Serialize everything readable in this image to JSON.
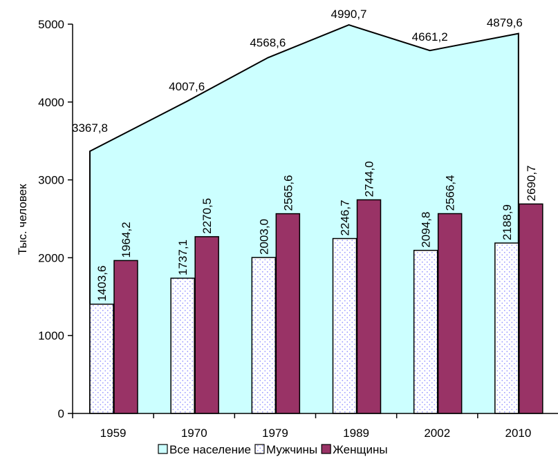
{
  "chart_data": {
    "type": "bar",
    "categories": [
      "1959",
      "1970",
      "1979",
      "1989",
      "2002",
      "2010"
    ],
    "ylabel": "Тыс. человек",
    "ylim": [
      0,
      5000
    ],
    "yticks": [
      "0",
      "1000",
      "2000",
      "3000",
      "4000",
      "5000"
    ],
    "series": [
      {
        "name": "Все население",
        "kind": "area",
        "color": "#ccffff",
        "values": [
          3367.8,
          4007.6,
          4568.6,
          4990.7,
          4661.2,
          4879.6
        ],
        "labels": [
          "3367,8",
          "4007,6",
          "4568,6",
          "4990,7",
          "4661,2",
          "4879,6"
        ]
      },
      {
        "name": "Мужчины",
        "kind": "bar",
        "color": "#ffffff",
        "dot_color": "#9999ff",
        "values": [
          1403.6,
          1737.1,
          2003.0,
          2246.7,
          2094.8,
          2188.9
        ],
        "labels": [
          "1403,6",
          "1737,1",
          "2003,0",
          "2246,7",
          "2094,8",
          "2188,9"
        ]
      },
      {
        "name": "Женщины",
        "kind": "bar",
        "color": "#993366",
        "values": [
          1964.2,
          2270.5,
          2565.6,
          2744.0,
          2566.4,
          2690.7
        ],
        "labels": [
          "1964,2",
          "2270,5",
          "2565,6",
          "2744,0",
          "2566,4",
          "2690,7"
        ]
      }
    ],
    "legend_position": "bottom",
    "grid": false
  }
}
